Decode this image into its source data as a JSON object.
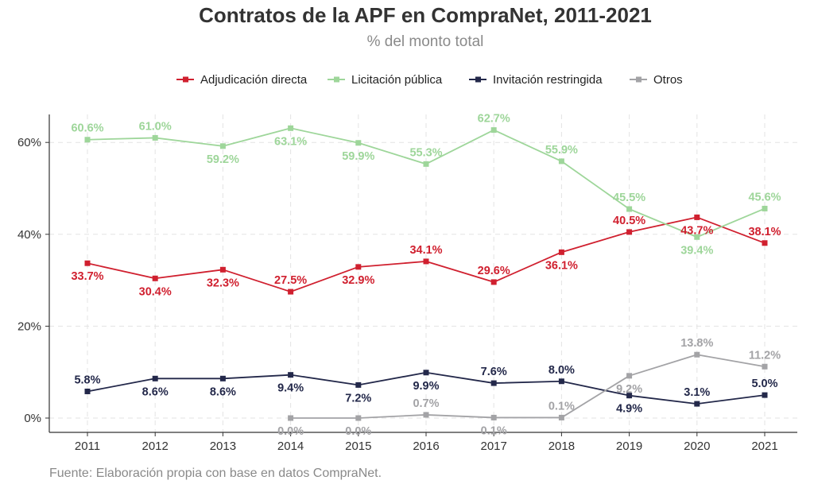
{
  "chart_data": {
    "type": "line",
    "title": "Contratos de la APF en CompraNet, 2011-2021",
    "subtitle": "% del monto total",
    "caption": "Fuente: Elaboración propia con base en datos CompraNet.",
    "x": [
      "2011",
      "2012",
      "2013",
      "2014",
      "2015",
      "2016",
      "2017",
      "2018",
      "2019",
      "2020",
      "2021"
    ],
    "y_ticks": [
      "0%",
      "20%",
      "40%",
      "60%"
    ],
    "ylim": [
      0,
      65
    ],
    "grid": true,
    "legend_position": "top",
    "series": [
      {
        "name": "Adjudicación directa",
        "color": "#d0202f",
        "values": [
          33.7,
          30.4,
          32.3,
          27.5,
          32.9,
          34.1,
          29.6,
          36.1,
          40.5,
          43.7,
          38.1
        ],
        "labels": [
          "33.7%",
          "30.4%",
          "32.3%",
          "27.5%",
          "32.9%",
          "34.1%",
          "29.6%",
          "36.1%",
          "40.5%",
          "43.7%",
          "38.1%"
        ],
        "label_pos": [
          "below",
          "below",
          "below",
          "above",
          "below",
          "above",
          "above",
          "below",
          "above",
          "below",
          "above"
        ]
      },
      {
        "name": "Licitación pública",
        "color": "#9ed69a",
        "values": [
          60.6,
          61.0,
          59.2,
          63.1,
          59.9,
          55.3,
          62.7,
          55.9,
          45.5,
          39.4,
          45.6
        ],
        "labels": [
          "60.6%",
          "61.0%",
          "59.2%",
          "63.1%",
          "59.9%",
          "55.3%",
          "62.7%",
          "55.9%",
          "45.5%",
          "39.4%",
          "45.6%"
        ],
        "label_pos": [
          "above",
          "above",
          "below",
          "below",
          "below",
          "above",
          "above",
          "above",
          "above",
          "below",
          "above"
        ]
      },
      {
        "name": "Invitación restringida",
        "color": "#23284a",
        "values": [
          5.8,
          8.6,
          8.6,
          9.4,
          7.2,
          9.9,
          7.6,
          8.0,
          4.9,
          3.1,
          5.0
        ],
        "labels": [
          "5.8%",
          "8.6%",
          "8.6%",
          "9.4%",
          "7.2%",
          "9.9%",
          "7.6%",
          "8.0%",
          "4.9%",
          "3.1%",
          "5.0%"
        ],
        "label_pos": [
          "above",
          "below",
          "below",
          "below",
          "below",
          "below",
          "above",
          "above",
          "below",
          "above",
          "above"
        ]
      },
      {
        "name": "Otros",
        "color": "#a3a3a6",
        "values": [
          null,
          null,
          null,
          0.0,
          0.0,
          0.7,
          0.1,
          0.1,
          9.2,
          13.8,
          11.2
        ],
        "labels": [
          null,
          null,
          null,
          "0.0%",
          "0.0%",
          "0.7%",
          "0.1%",
          "0.1%",
          "9.2%",
          "13.8%",
          "11.2%"
        ],
        "label_pos": [
          null,
          null,
          null,
          "below",
          "below",
          "above",
          "below",
          "above",
          "below",
          "above",
          "above"
        ]
      }
    ]
  }
}
